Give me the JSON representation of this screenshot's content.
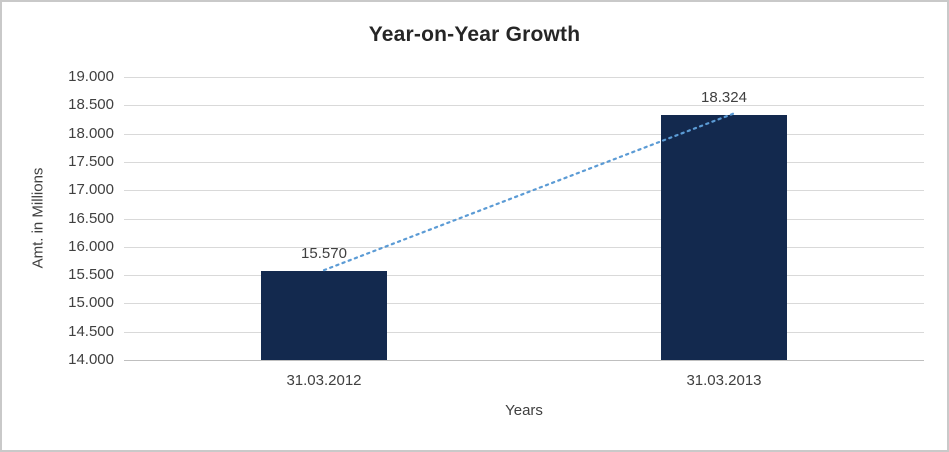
{
  "chart_data": {
    "type": "bar",
    "title": "Year-on-Year Growth",
    "xlabel": "Years",
    "ylabel": "Amt. in Millions",
    "categories": [
      "31.03.2012",
      "31.03.2013"
    ],
    "values": [
      15.57,
      18.324
    ],
    "data_labels": [
      "15.570",
      "18.324"
    ],
    "ylim": [
      14.0,
      19.0
    ],
    "ytick_step": 0.5,
    "ytick_labels": [
      "14.000",
      "14.500",
      "15.000",
      "15.500",
      "16.000",
      "16.500",
      "17.000",
      "17.500",
      "18.000",
      "18.500",
      "19.000"
    ],
    "grid": true,
    "legend": "none",
    "colors": {
      "bar": "#13294e",
      "trendline": "#5b9bd5",
      "gridline": "#d9d9d9",
      "axis_line": "#bfbfbf",
      "text": "#404040",
      "title": "#262626",
      "frame_border": "#c9c9c9",
      "background": "#ffffff"
    },
    "trendline": {
      "style": "dotted",
      "from_value": 15.57,
      "to_value": 18.324
    }
  }
}
